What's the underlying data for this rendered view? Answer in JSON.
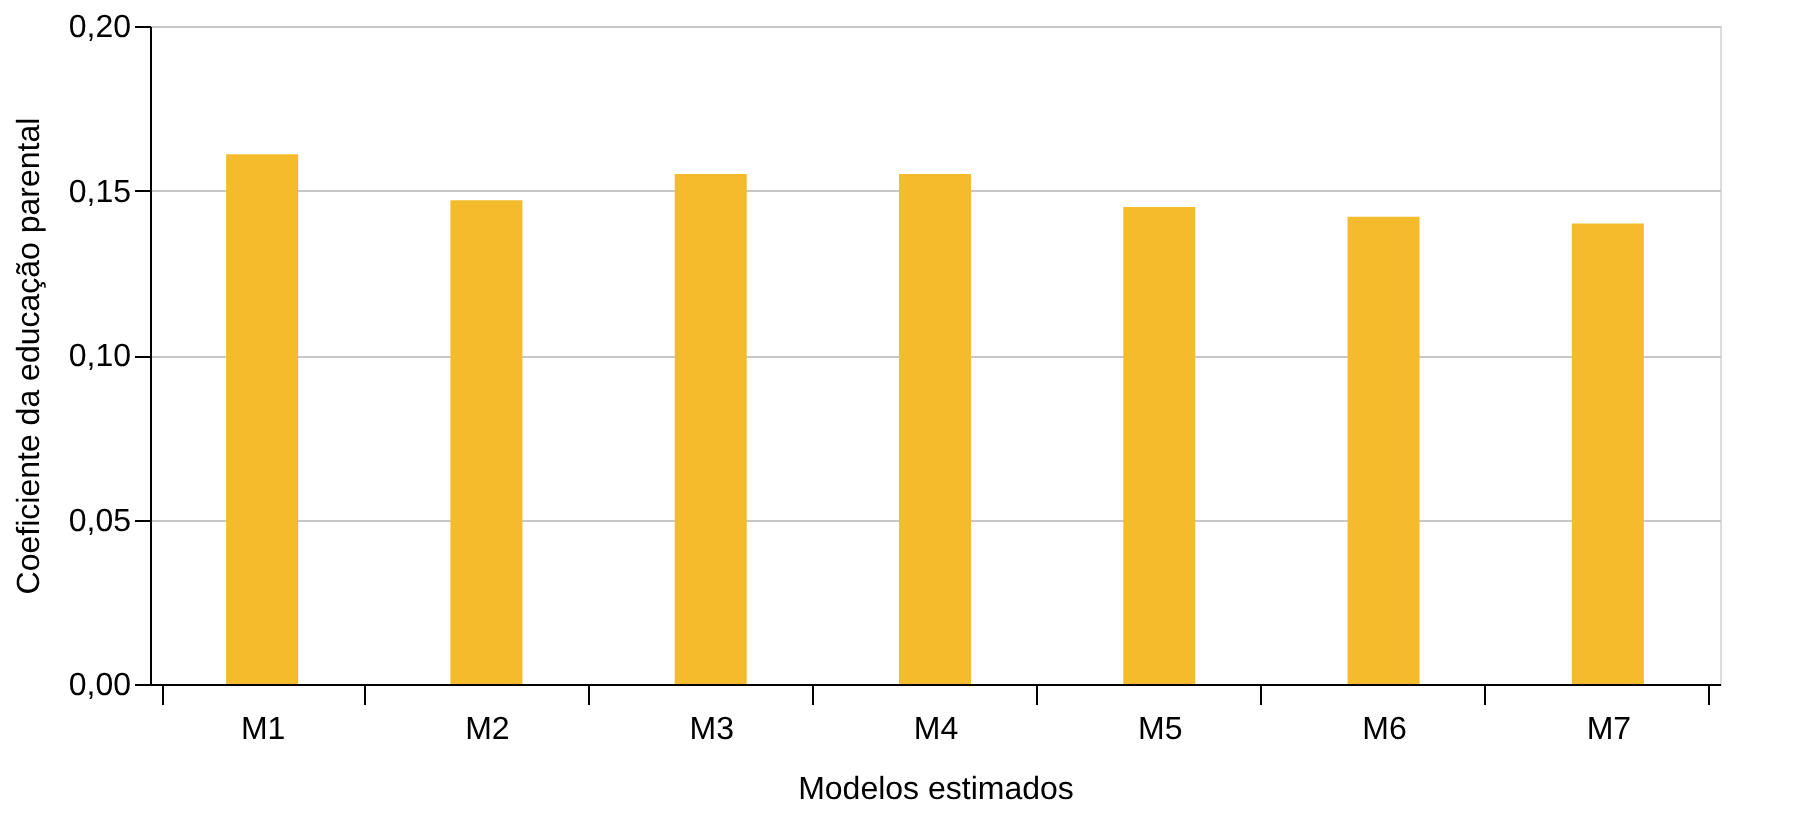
{
  "chart_data": {
    "type": "bar",
    "xlabel": "Modelos estimados",
    "ylabel": "Coeficiente da educação parental",
    "categories": [
      "M1",
      "M2",
      "M3",
      "M4",
      "M5",
      "M6",
      "M7"
    ],
    "values": [
      0.161,
      0.147,
      0.155,
      0.155,
      0.145,
      0.142,
      0.14
    ],
    "color": "#f4bc2c",
    "ylim": [
      0,
      0.2
    ],
    "yticks": [
      {
        "value": 0,
        "label": "0,00"
      },
      {
        "value": 0.05,
        "label": "0,05"
      },
      {
        "value": 0.1,
        "label": "0,10"
      },
      {
        "value": 0.15,
        "label": "0,15"
      },
      {
        "value": 0.2,
        "label": "0,20"
      }
    ],
    "grid": "y"
  }
}
